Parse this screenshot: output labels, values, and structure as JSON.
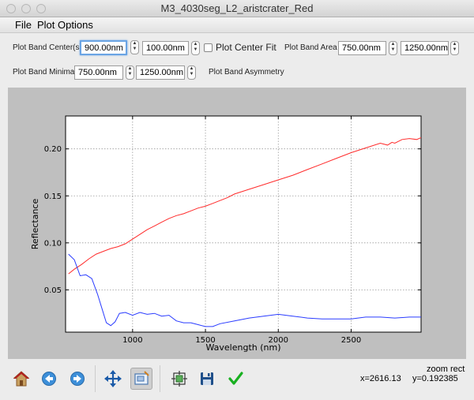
{
  "window": {
    "title": "M3_4030seg_L2_aristcrater_Red"
  },
  "menu": {
    "items": [
      "File",
      "Plot Options"
    ]
  },
  "controls": {
    "band_center_label": "Plot Band Center(s)",
    "band_center_1": "900.00nm",
    "band_center_2": "100.00nm",
    "center_fit_label": "Plot Center Fit",
    "band_area_label": "Plot Band Area",
    "band_area_1": "750.00nm",
    "band_area_2": "1250.00nm",
    "band_minima_label": "Plot Band Minima",
    "band_minima_1": "750.00nm",
    "band_minima_2": "1250.00nm",
    "band_asymmetry_label": "Plot Band Asymmetry"
  },
  "chart_data": {
    "type": "line",
    "xlabel": "Wavelength (nm)",
    "ylabel": "Reflectance",
    "xlim": [
      540,
      2980
    ],
    "ylim": [
      0.005,
      0.235
    ],
    "xticks": [
      1000,
      1500,
      2000,
      2500
    ],
    "yticks": [
      0.05,
      0.1,
      0.15,
      0.2
    ],
    "xtick_labels": [
      "1000",
      "1500",
      "2000",
      "2500"
    ],
    "ytick_labels": [
      "0.05",
      "0.10",
      "0.15",
      "0.20"
    ],
    "grid": true,
    "series": [
      {
        "color": "#ff2b2b",
        "x": [
          560,
          600,
          650,
          700,
          750,
          800,
          850,
          900,
          950,
          1000,
          1050,
          1100,
          1150,
          1200,
          1250,
          1300,
          1350,
          1400,
          1450,
          1500,
          1550,
          1600,
          1650,
          1700,
          1800,
          1900,
          2000,
          2100,
          2200,
          2300,
          2400,
          2500,
          2600,
          2700,
          2750,
          2780,
          2800,
          2850,
          2900,
          2950,
          2980
        ],
        "y": [
          0.067,
          0.072,
          0.077,
          0.083,
          0.088,
          0.091,
          0.094,
          0.096,
          0.099,
          0.104,
          0.109,
          0.114,
          0.118,
          0.122,
          0.126,
          0.129,
          0.131,
          0.134,
          0.137,
          0.139,
          0.142,
          0.145,
          0.148,
          0.152,
          0.157,
          0.162,
          0.167,
          0.172,
          0.178,
          0.184,
          0.19,
          0.196,
          0.201,
          0.206,
          0.204,
          0.207,
          0.206,
          0.21,
          0.211,
          0.21,
          0.212
        ]
      },
      {
        "color": "#2a3cff",
        "x": [
          560,
          600,
          640,
          680,
          720,
          760,
          790,
          820,
          850,
          880,
          910,
          950,
          1000,
          1050,
          1100,
          1150,
          1200,
          1250,
          1300,
          1350,
          1400,
          1450,
          1500,
          1550,
          1600,
          1700,
          1800,
          1900,
          2000,
          2100,
          2200,
          2300,
          2400,
          2500,
          2600,
          2700,
          2800,
          2900,
          2980
        ],
        "y": [
          0.088,
          0.082,
          0.065,
          0.066,
          0.062,
          0.045,
          0.03,
          0.015,
          0.012,
          0.016,
          0.025,
          0.026,
          0.023,
          0.026,
          0.024,
          0.025,
          0.022,
          0.023,
          0.017,
          0.015,
          0.015,
          0.013,
          0.011,
          0.011,
          0.014,
          0.017,
          0.02,
          0.022,
          0.024,
          0.022,
          0.02,
          0.019,
          0.019,
          0.019,
          0.021,
          0.021,
          0.02,
          0.021,
          0.021
        ]
      }
    ]
  },
  "toolbar": {
    "icons": [
      "home-icon",
      "back-icon",
      "forward-icon",
      "pan-icon",
      "zoom-icon",
      "subplots-icon",
      "save-icon",
      "check-icon"
    ]
  },
  "status": {
    "mode": "zoom rect",
    "x_readout": "x=2616.13",
    "y_readout": "y=0.192385"
  }
}
